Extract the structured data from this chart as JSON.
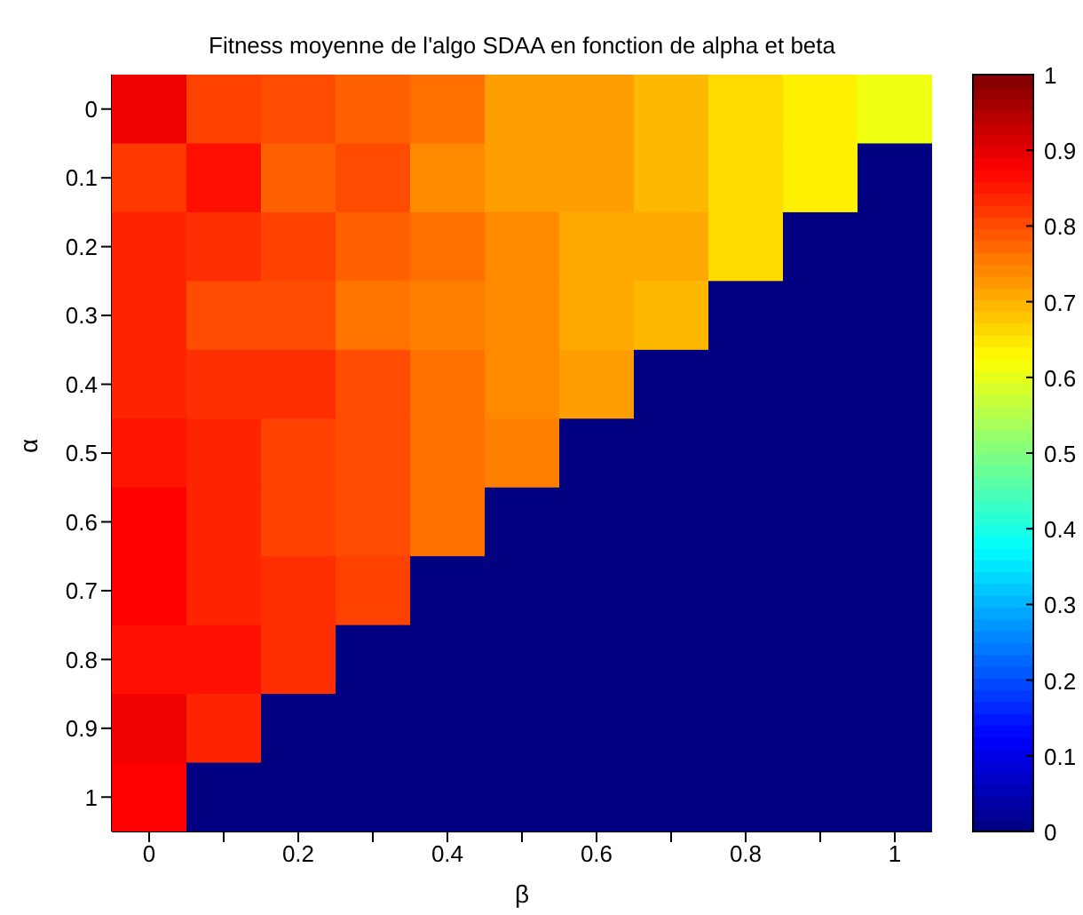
{
  "chart_data": {
    "type": "heatmap",
    "title": "Fitness moyenne de l'algo SDAA en fonction de alpha et beta",
    "xlabel": "β",
    "ylabel": "α",
    "categories": [
      "0",
      null,
      "0.2",
      null,
      "0.4",
      null,
      "0.6",
      null,
      "0.8",
      null,
      "1"
    ],
    "y_categories": [
      "0",
      "0.1",
      "0.2",
      "0.3",
      "0.4",
      "0.5",
      "0.6",
      "0.7",
      "0.8",
      "0.9",
      "1"
    ],
    "cells": [
      [
        0.89,
        0.81,
        0.8,
        0.78,
        0.765,
        0.72,
        0.72,
        0.695,
        0.66,
        0.64,
        0.61
      ],
      [
        0.82,
        0.86,
        0.78,
        0.8,
        0.74,
        0.72,
        0.72,
        0.695,
        0.66,
        0.64,
        0
      ],
      [
        0.84,
        0.83,
        0.81,
        0.78,
        0.765,
        0.74,
        0.71,
        0.71,
        0.66,
        0,
        0
      ],
      [
        0.84,
        0.8,
        0.8,
        0.76,
        0.75,
        0.74,
        0.71,
        0.695,
        0,
        0,
        0
      ],
      [
        0.84,
        0.83,
        0.83,
        0.8,
        0.765,
        0.74,
        0.72,
        0,
        0,
        0,
        0
      ],
      [
        0.855,
        0.84,
        0.81,
        0.8,
        0.765,
        0.75,
        0,
        0,
        0,
        0,
        0
      ],
      [
        0.875,
        0.84,
        0.81,
        0.8,
        0.765,
        0,
        0,
        0,
        0,
        0,
        0
      ],
      [
        0.875,
        0.84,
        0.83,
        0.81,
        0,
        0,
        0,
        0,
        0,
        0,
        0
      ],
      [
        0.86,
        0.86,
        0.83,
        0,
        0,
        0,
        0,
        0,
        0,
        0,
        0
      ],
      [
        0.89,
        0.84,
        0,
        0,
        0,
        0,
        0,
        0,
        0,
        0,
        0
      ],
      [
        0.875,
        0,
        0,
        0,
        0,
        0,
        0,
        0,
        0,
        0,
        0
      ]
    ],
    "clim": [
      0,
      1
    ],
    "cticks": [
      0,
      0.1,
      0.2,
      0.3,
      0.4,
      0.5,
      0.6,
      0.7,
      0.8,
      0.9,
      1
    ]
  }
}
